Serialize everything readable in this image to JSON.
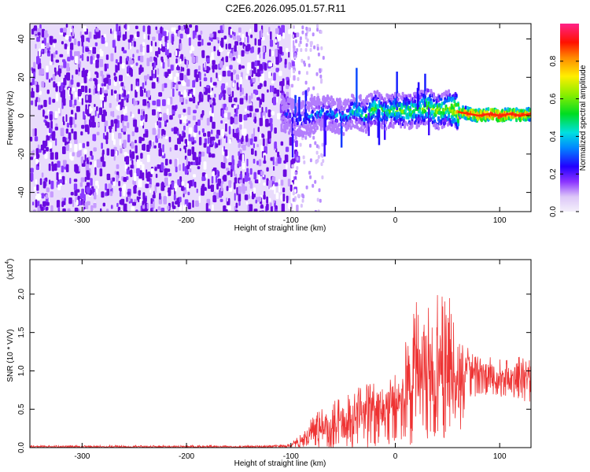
{
  "figure": {
    "title": "C2E6.2026.095.01.57.R11"
  },
  "colors": {
    "axis": "#000000",
    "snr_line": "#ee3333",
    "noise_dark": "#6600dd",
    "noise_light": "#cc99ff"
  },
  "chart_data": [
    {
      "type": "heatmap",
      "name": "spectrogram",
      "xlabel": "Height of straight line (km)",
      "ylabel": "Frequency (Hz)",
      "xlim": [
        -350,
        130
      ],
      "ylim": [
        -50,
        48
      ],
      "xticks": [
        -300,
        -200,
        -100,
        0,
        100
      ],
      "xtick_labels": [
        "-300",
        "-200",
        "-100",
        "0",
        "100"
      ],
      "yticks": [
        -40,
        -20,
        0,
        20,
        40
      ],
      "ytick_labels": [
        "-40",
        "-20",
        "0",
        "20",
        "40"
      ],
      "noise_region_x": [
        -350,
        -100
      ],
      "signal_centerline": {
        "x": [
          -110,
          -90,
          -70,
          -50,
          -40,
          -30,
          -20,
          -10,
          0,
          10,
          20,
          30,
          40,
          50,
          60,
          70,
          80,
          90,
          100,
          110,
          120,
          130
        ],
        "y": [
          1,
          -2,
          2,
          -1,
          3,
          0,
          4,
          2,
          3,
          2,
          3,
          5,
          2,
          4,
          2,
          1,
          0,
          1,
          0,
          1,
          0,
          1
        ],
        "amplitude": [
          0.25,
          0.3,
          0.35,
          0.35,
          0.45,
          0.45,
          0.55,
          0.5,
          0.55,
          0.55,
          0.55,
          0.6,
          0.6,
          0.6,
          0.75,
          0.9,
          0.95,
          0.95,
          0.95,
          0.95,
          0.9,
          0.85
        ]
      },
      "colorbar": {
        "label": "Normalized spectral amplitude",
        "range": [
          0.0,
          1.0
        ],
        "ticks": [
          0.0,
          0.2,
          0.4,
          0.6,
          0.8
        ],
        "tick_labels": [
          "0.0",
          "0.2",
          "0.4",
          "0.6",
          "0.8"
        ]
      }
    },
    {
      "type": "line",
      "name": "snr",
      "xlabel": "Height of straight line (km)",
      "ylabel": "SNR (10 * V/V)",
      "scale_note_base": "(x10",
      "scale_note_exp": "4",
      "scale_note_end": ")",
      "xlim": [
        -350,
        130
      ],
      "ylim": [
        0,
        2.45
      ],
      "xticks": [
        -300,
        -200,
        -100,
        0,
        100
      ],
      "xtick_labels": [
        "-300",
        "-200",
        "-100",
        "0",
        "100"
      ],
      "yticks": [
        0.0,
        0.5,
        1.0,
        1.5,
        2.0
      ],
      "ytick_labels": [
        "0.0",
        "0.5",
        "1.0",
        "1.5",
        "2.0"
      ],
      "envelope": {
        "x": [
          -350,
          -120,
          -100,
          -90,
          -80,
          -60,
          -40,
          -20,
          0,
          10,
          20,
          30,
          40,
          50,
          60,
          70,
          80,
          90,
          100,
          110,
          120,
          130
        ],
        "upper": [
          0.03,
          0.03,
          0.05,
          0.2,
          0.45,
          0.6,
          0.75,
          0.9,
          1.1,
          1.4,
          1.9,
          2.0,
          2.15,
          2.05,
          1.8,
          1.3,
          1.2,
          1.2,
          1.15,
          1.15,
          1.2,
          1.25
        ],
        "mean": [
          0.01,
          0.01,
          0.02,
          0.08,
          0.18,
          0.25,
          0.32,
          0.4,
          0.5,
          0.6,
          0.75,
          0.85,
          0.9,
          0.85,
          0.8,
          0.95,
          0.95,
          0.9,
          0.9,
          0.9,
          0.9,
          0.9
        ],
        "lower": [
          0.0,
          0.0,
          0.0,
          0.0,
          0.0,
          0.0,
          0.0,
          0.0,
          0.0,
          0.0,
          0.05,
          0.1,
          0.15,
          0.1,
          0.1,
          0.6,
          0.7,
          0.65,
          0.65,
          0.65,
          0.6,
          0.6
        ]
      }
    }
  ]
}
